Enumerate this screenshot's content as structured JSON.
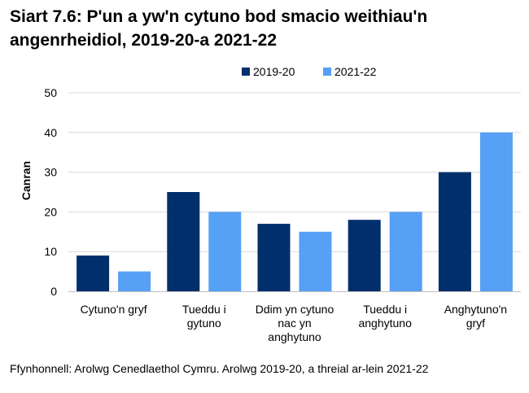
{
  "title": "Siart 7.6: P'un a yw'n cytuno bod smacio weithiau'n angenrheidiol, 2019-20-a 2021-22",
  "source": "Ffynhonnell: Arolwg Cenedlaethol Cymru. Arolwg 2019-20, a threial ar-lein 2021-22",
  "colors": {
    "series_2019": "#002f6c",
    "series_2021": "#56a0f5",
    "gridline": "#d9d9d9",
    "axis": "#bfbfbf"
  },
  "chart_data": {
    "type": "bar",
    "title": "Siart 7.6: P'un a yw'n cytuno bod smacio weithiau'n angenrheidiol, 2019-20-a 2021-22",
    "xlabel": "",
    "ylabel": "Canran",
    "ylim": [
      0,
      50
    ],
    "yticks": [
      "0",
      "10",
      "20",
      "30",
      "40",
      "50"
    ],
    "grid": true,
    "legend_position": "top",
    "categories": [
      [
        "Cytuno'n gryf"
      ],
      [
        "Tueddu i",
        "gytuno"
      ],
      [
        "Ddim yn cytuno",
        "nac yn",
        "anghytuno"
      ],
      [
        "Tueddu i",
        "anghytuno"
      ],
      [
        "Anghytuno'n",
        "gryf"
      ]
    ],
    "series": [
      {
        "name": "2019-20",
        "color": "#002f6c",
        "values": [
          9,
          25,
          17,
          18,
          30
        ]
      },
      {
        "name": "2021-22",
        "color": "#56a0f5",
        "values": [
          5,
          20,
          15,
          20,
          40
        ]
      }
    ]
  }
}
